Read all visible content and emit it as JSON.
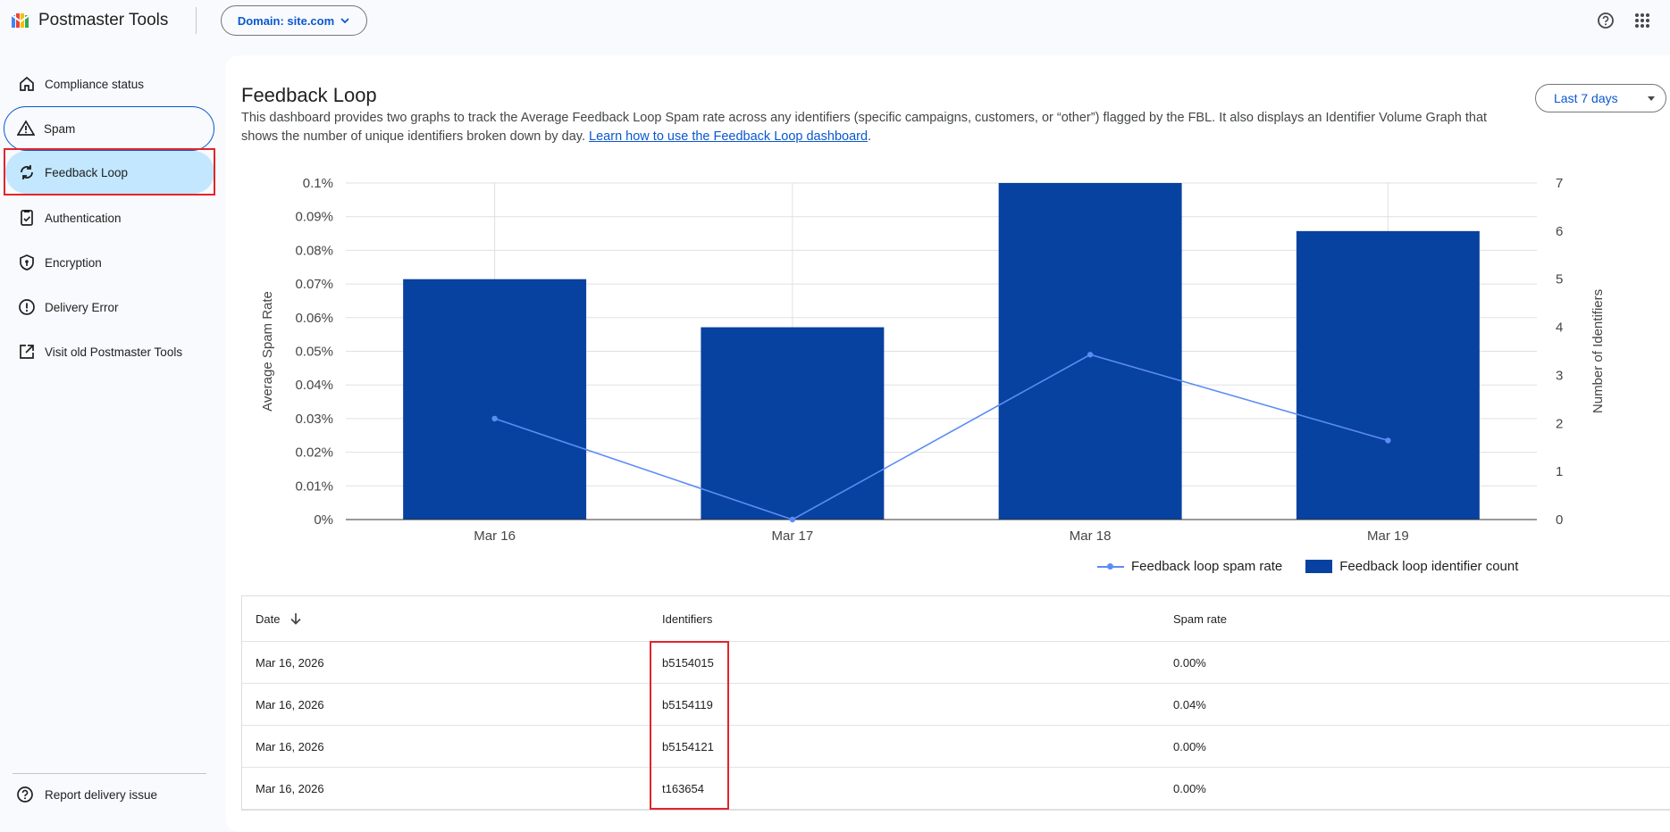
{
  "app": {
    "title": "Postmaster Tools"
  },
  "domain_selector": {
    "label": "Domain: site.com"
  },
  "sidebar": {
    "items": [
      {
        "label": "Compliance status",
        "icon": "home-icon"
      },
      {
        "label": "Spam",
        "icon": "warning-icon"
      },
      {
        "label": "Feedback Loop",
        "icon": "sync-icon"
      },
      {
        "label": "Authentication",
        "icon": "badge-check-icon"
      },
      {
        "label": "Encryption",
        "icon": "shield-icon"
      },
      {
        "label": "Delivery Error",
        "icon": "alert-circle-icon"
      },
      {
        "label": "Visit old Postmaster Tools",
        "icon": "open-external-icon"
      }
    ],
    "footer_item": {
      "label": "Report delivery issue",
      "icon": "help-circle-icon"
    },
    "active_index": 2
  },
  "main": {
    "title": "Feedback Loop",
    "description": "This dashboard provides two graphs to track the Average Feedback Loop Spam rate across any identifiers (specific campaigns, customers, or “other”) flagged by the FBL. It also displays an Identifier Volume Graph that shows the number of unique identifiers broken down by day. ",
    "learn_link": "Learn how to use the Feedback Loop dashboard",
    "description_end": ".",
    "range": "Last 7 days"
  },
  "chart_data": {
    "type": "bar",
    "categories": [
      "Mar 16",
      "Mar 17",
      "Mar 18",
      "Mar 19"
    ],
    "series": [
      {
        "name": "Feedback loop identifier count",
        "type": "bar",
        "axis": "right",
        "values": [
          5,
          4,
          7,
          6
        ],
        "color": "#0842a0"
      },
      {
        "name": "Feedback loop spam rate",
        "type": "line",
        "axis": "left",
        "values": [
          0.03,
          0.0,
          0.049,
          0.0235
        ],
        "color": "#5b8cf5"
      }
    ],
    "ylabel": "Average Spam Rate",
    "ylabel_right": "Number of Identifiers",
    "ylim": [
      0,
      0.1
    ],
    "ylim_right": [
      0,
      7
    ],
    "yticks": [
      "0%",
      "0.01%",
      "0.02%",
      "0.03%",
      "0.04%",
      "0.05%",
      "0.06%",
      "0.07%",
      "0.08%",
      "0.09%",
      "0.1%"
    ],
    "yticks_right": [
      "0",
      "1",
      "2",
      "3",
      "4",
      "5",
      "6",
      "7"
    ],
    "grid": true,
    "legend": "bottom-right"
  },
  "table": {
    "headers": [
      "Date",
      "Identifiers",
      "Spam rate"
    ],
    "rows": [
      [
        "Mar 16, 2026",
        "b5154015",
        "0.00%"
      ],
      [
        "Mar 16, 2026",
        "b5154119",
        "0.04%"
      ],
      [
        "Mar 16, 2026",
        "b5154121",
        "0.00%"
      ],
      [
        "Mar 16, 2026",
        "t163654",
        "0.00%"
      ]
    ]
  }
}
